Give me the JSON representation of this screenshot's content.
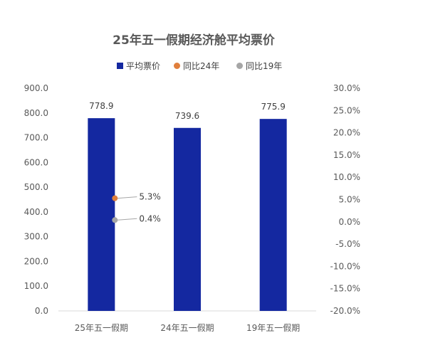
{
  "chart_data": {
    "type": "bar",
    "title": "25年五一假期经济舱平均票价",
    "categories": [
      "25年五一假期",
      "24年五一假期",
      "19年五一假期"
    ],
    "series": [
      {
        "name": "平均票价",
        "axis": "left",
        "kind": "bar",
        "values": [
          778.9,
          739.6,
          775.9
        ],
        "labels": [
          "778.9",
          "739.6",
          "775.9"
        ],
        "color": "#1428A0"
      },
      {
        "name": "同比24年",
        "axis": "right",
        "kind": "point",
        "values": [
          5.3,
          null,
          null
        ],
        "labels": [
          "5.3%",
          "",
          ""
        ],
        "color": "#E07F3C"
      },
      {
        "name": "同比19年",
        "axis": "right",
        "kind": "point",
        "values": [
          0.4,
          null,
          null
        ],
        "labels": [
          "0.4%",
          "",
          ""
        ],
        "color": "#A6A6A6"
      }
    ],
    "y_left": {
      "min": 0,
      "max": 900,
      "step": 100,
      "tick_labels": [
        "0.0",
        "100.0",
        "200.0",
        "300.0",
        "400.0",
        "500.0",
        "600.0",
        "700.0",
        "800.0",
        "900.0"
      ]
    },
    "y_right": {
      "min": -20,
      "max": 30,
      "step": 5,
      "tick_labels": [
        "-20.0%",
        "-15.0%",
        "-10.0%",
        "-5.0%",
        "0.0%",
        "5.0%",
        "10.0%",
        "15.0%",
        "20.0%",
        "25.0%",
        "30.0%"
      ]
    },
    "legend_position": "top",
    "grid": false
  }
}
